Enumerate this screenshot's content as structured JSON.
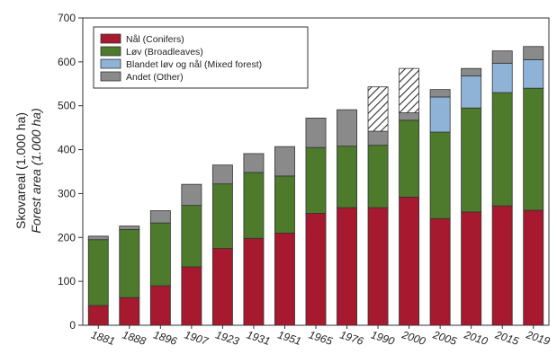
{
  "chart_data": {
    "type": "bar",
    "stacked": true,
    "ylabel": "Skovareal (1.000 ha)",
    "ylabel_en": "Forest area (1.000 ha)",
    "ylim": [
      0,
      700
    ],
    "yticks": [
      0,
      100,
      200,
      300,
      400,
      500,
      600,
      700
    ],
    "categories": [
      "1881",
      "1888",
      "1896",
      "1907",
      "1923",
      "1931",
      "1951",
      "1965",
      "1976",
      "1990",
      "2000",
      "2005",
      "2010",
      "2015",
      "2019"
    ],
    "legend_position": "top-left",
    "series": [
      {
        "name": "Nål (Conifers)",
        "color": "#a6192e",
        "values": [
          45,
          63,
          90,
          133,
          175,
          198,
          210,
          255,
          268,
          268,
          292,
          243,
          258,
          272,
          262
        ]
      },
      {
        "name": "Løv (Broadleaves)",
        "color": "#4e7a2c",
        "values": [
          150,
          155,
          143,
          140,
          147,
          150,
          130,
          150,
          140,
          142,
          175,
          197,
          237,
          258,
          278
        ]
      },
      {
        "name": "Blandet løv og nål (Mixed forest)",
        "color": "#8fb3d6",
        "values": [
          0,
          0,
          0,
          0,
          0,
          0,
          0,
          0,
          0,
          0,
          0,
          80,
          73,
          67,
          65
        ]
      },
      {
        "name": "Andet (Other)",
        "color": "#8a8a8a",
        "values": [
          8,
          8,
          28,
          48,
          43,
          43,
          67,
          67,
          83,
          32,
          17,
          17,
          17,
          28,
          30
        ]
      },
      {
        "name": "",
        "color": "#ffffff",
        "pattern": "hatched",
        "values": [
          0,
          0,
          0,
          0,
          0,
          0,
          0,
          0,
          0,
          101,
          101,
          0,
          0,
          0,
          0
        ]
      }
    ]
  }
}
